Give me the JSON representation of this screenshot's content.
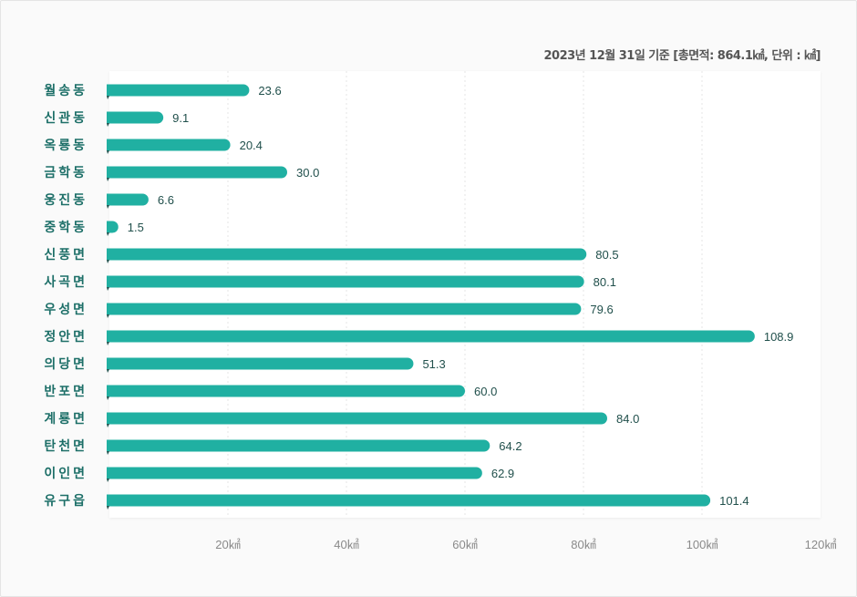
{
  "chart_data": {
    "type": "bar",
    "orientation": "horizontal",
    "note": "2023년 12월 31일 기준 [총면적: 864.1㎢, 단위 : ㎢]",
    "categories": [
      "월송동",
      "신관동",
      "옥룡동",
      "금학동",
      "웅진동",
      "중학동",
      "신풍면",
      "사곡면",
      "우성면",
      "정안면",
      "의당면",
      "반포면",
      "계룡면",
      "탄천면",
      "이인면",
      "유구읍"
    ],
    "values": [
      23.6,
      9.1,
      20.4,
      30.0,
      6.6,
      1.5,
      80.5,
      80.1,
      79.6,
      108.9,
      51.3,
      60.0,
      84.0,
      64.2,
      62.9,
      101.4
    ],
    "value_labels": [
      "23.6",
      "9.1",
      "20.4",
      "30.0",
      "6.6",
      "1.5",
      "80.5",
      "80.1",
      "79.6",
      "108.9",
      "51.3",
      "60.0",
      "84.0",
      "64.2",
      "62.9",
      "101.4"
    ],
    "xlim": [
      0,
      120
    ],
    "x_ticks": [
      20,
      40,
      60,
      80,
      100,
      120
    ],
    "x_tick_labels": [
      "20㎢",
      "40㎢",
      "60㎢",
      "80㎢",
      "100㎢",
      "120㎢"
    ],
    "grid": true,
    "colors": {
      "bar": "#20b0a2",
      "label": "#1d6f68",
      "value": "#21504c",
      "tick": "#8a8a8a"
    }
  }
}
